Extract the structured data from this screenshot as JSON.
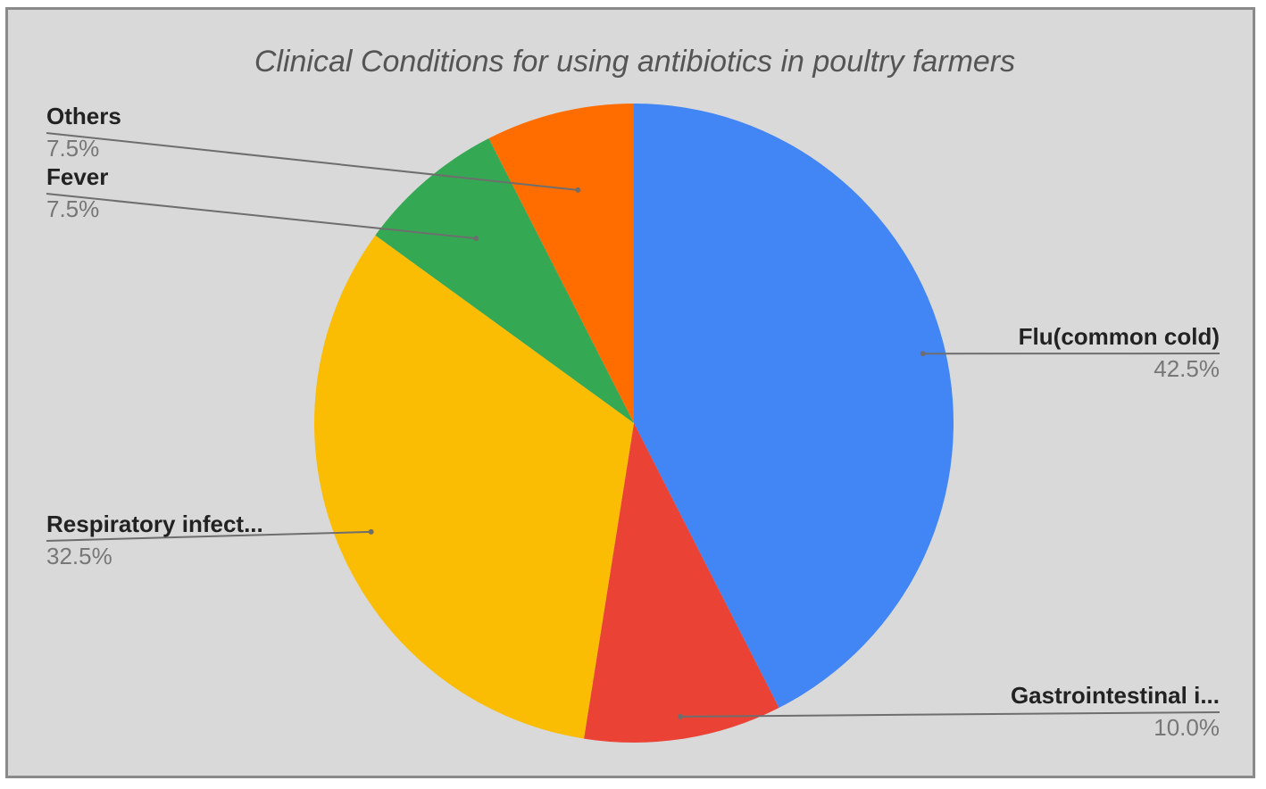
{
  "chart_data": {
    "type": "pie",
    "title": "Clinical Conditions for using antibiotics in poultry farmers",
    "slices": [
      {
        "label": "Flu(common cold)",
        "value": 42.5,
        "percent_label": "42.5%",
        "color": "#4285f4"
      },
      {
        "label": "Gastrointestinal i...",
        "value": 10.0,
        "percent_label": "10.0%",
        "color": "#ea4335"
      },
      {
        "label": "Respiratory infect...",
        "value": 32.5,
        "percent_label": "32.5%",
        "color": "#fbbc04"
      },
      {
        "label": "Fever",
        "value": 7.5,
        "percent_label": "7.5%",
        "color": "#34a853"
      },
      {
        "label": "Others",
        "value": 7.5,
        "percent_label": "7.5%",
        "color": "#ff6d01"
      }
    ],
    "start_angle_deg": 0,
    "direction": "clockwise",
    "background": "#d9d9d9"
  }
}
